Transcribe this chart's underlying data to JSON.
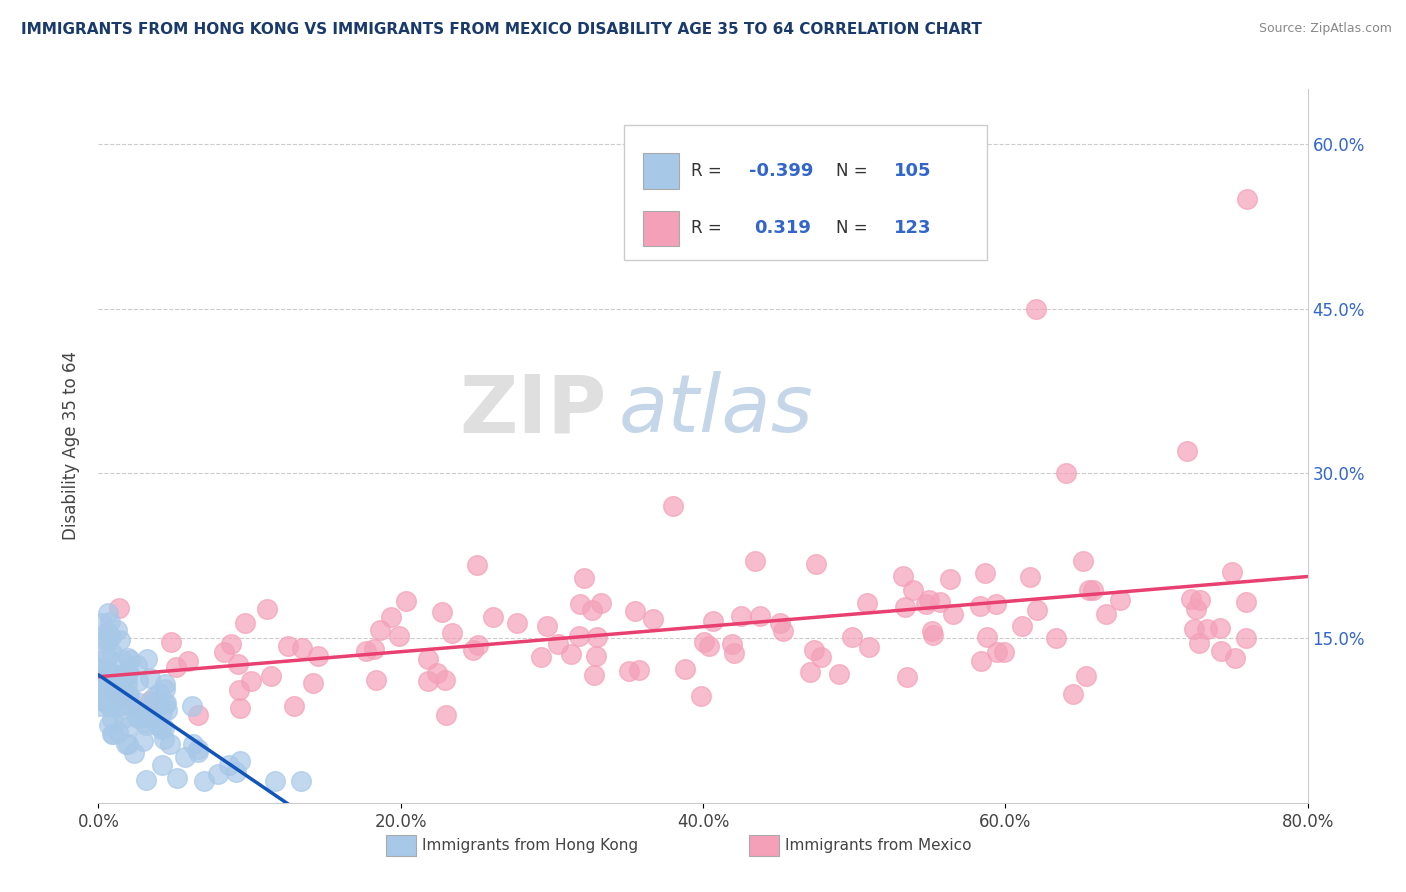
{
  "title": "IMMIGRANTS FROM HONG KONG VS IMMIGRANTS FROM MEXICO DISABILITY AGE 35 TO 64 CORRELATION CHART",
  "source_text": "Source: ZipAtlas.com",
  "ylabel": "Disability Age 35 to 64",
  "legend_label1": "Immigrants from Hong Kong",
  "legend_label2": "Immigrants from Mexico",
  "r1": "-0.399",
  "n1": "105",
  "r2": "0.319",
  "n2": "123",
  "color_hk": "#a8c8e8",
  "color_mx": "#f4a0b8",
  "color_hk_line": "#2255aa",
  "color_mx_line": "#e0406080",
  "watermark_zip": "ZIP",
  "watermark_atlas": "atlas",
  "xlim": [
    0.0,
    0.8
  ],
  "ylim": [
    0.0,
    0.65
  ],
  "xtick_vals": [
    0.0,
    0.2,
    0.4,
    0.6,
    0.8
  ],
  "xtick_labels": [
    "0.0%",
    "20.0%",
    "40.0%",
    "60.0%",
    "80.0%"
  ],
  "ytick_vals": [
    0.15,
    0.3,
    0.45,
    0.6
  ],
  "ytick_labels": [
    "15.0%",
    "30.0%",
    "45.0%",
    "60.0%"
  ]
}
